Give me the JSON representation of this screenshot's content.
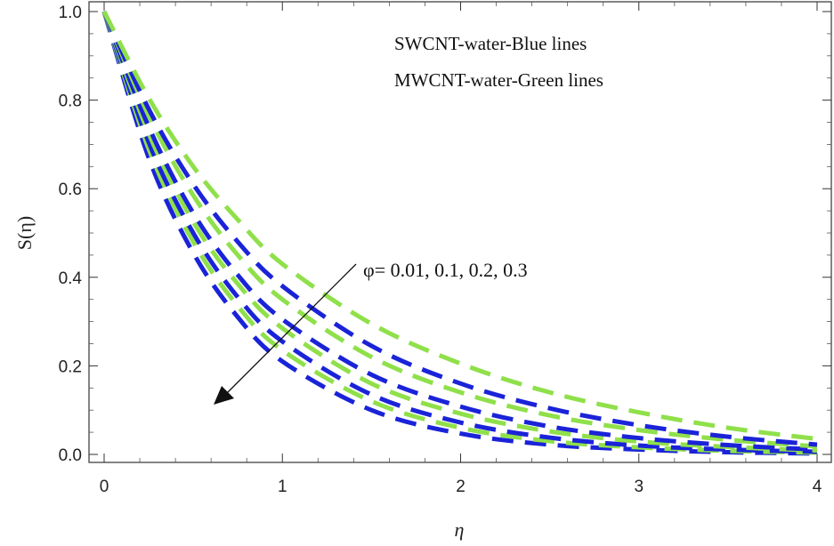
{
  "chart_data": {
    "type": "line",
    "xlabel": "η",
    "ylabel": "S(η)",
    "xlim": [
      0,
      4
    ],
    "ylim": [
      0,
      1
    ],
    "x_ticks": [
      "0",
      "1",
      "2",
      "3",
      "4"
    ],
    "y_ticks": [
      "0.0",
      "0.2",
      "0.4",
      "0.6",
      "0.8",
      "1.0"
    ],
    "legend": [
      "SWCNT-water-Blue lines",
      "MWCNT-water-Green lines"
    ],
    "annotation": "φ= 0.01, 0.1, 0.2, 0.3",
    "colors": {
      "blue": "#1a23d8",
      "green": "#8fe04a"
    },
    "x": [
      0,
      0.25,
      0.5,
      0.75,
      1,
      1.5,
      2,
      2.5,
      3,
      3.5,
      4
    ],
    "series": [
      {
        "color": "blue",
        "values": [
          1.0,
          0.67,
          0.455,
          0.31,
          0.21,
          0.1,
          0.047,
          0.022,
          0.011,
          0.005,
          0.002
        ]
      },
      {
        "color": "green",
        "values": [
          1.0,
          0.69,
          0.48,
          0.335,
          0.235,
          0.12,
          0.06,
          0.03,
          0.016,
          0.008,
          0.004
        ]
      },
      {
        "color": "blue",
        "values": [
          1.0,
          0.705,
          0.5,
          0.355,
          0.255,
          0.135,
          0.072,
          0.038,
          0.02,
          0.011,
          0.006
        ]
      },
      {
        "color": "green",
        "values": [
          1.0,
          0.725,
          0.525,
          0.385,
          0.285,
          0.16,
          0.092,
          0.052,
          0.029,
          0.017,
          0.009
        ]
      },
      {
        "color": "blue",
        "values": [
          1.0,
          0.74,
          0.545,
          0.405,
          0.305,
          0.18,
          0.108,
          0.063,
          0.037,
          0.021,
          0.011
        ]
      },
      {
        "color": "green",
        "values": [
          1.0,
          0.765,
          0.585,
          0.45,
          0.35,
          0.22,
          0.14,
          0.088,
          0.055,
          0.033,
          0.018
        ]
      },
      {
        "color": "blue",
        "values": [
          1.0,
          0.78,
          0.61,
          0.48,
          0.38,
          0.245,
          0.16,
          0.104,
          0.066,
          0.04,
          0.022
        ]
      },
      {
        "color": "green",
        "values": [
          1.0,
          0.805,
          0.65,
          0.53,
          0.43,
          0.295,
          0.205,
          0.14,
          0.095,
          0.06,
          0.035
        ]
      }
    ]
  }
}
